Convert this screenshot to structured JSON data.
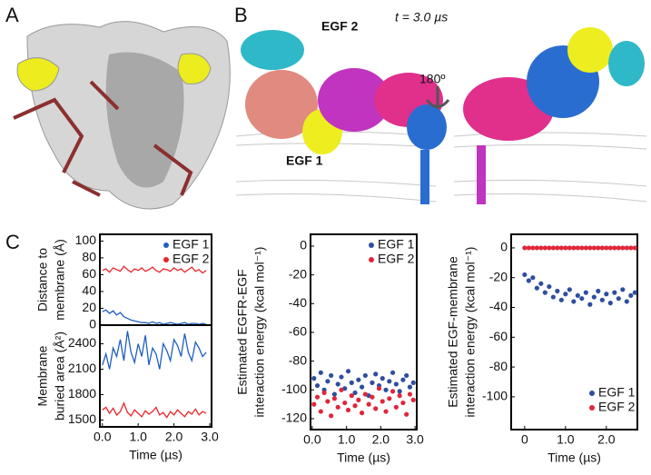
{
  "labels": {
    "a": "A",
    "b": "B",
    "c": "C",
    "egf2": "EGF 2",
    "time": "t = 3.0 µs",
    "rot": "180º",
    "egf1": "EGF 1"
  },
  "chart_data": [
    {
      "type": "line",
      "ylabel": [
        "Distance to",
        "membrane (Å)"
      ],
      "legend": "upper right",
      "grid": false,
      "x": [
        0,
        0.1,
        0.2,
        0.3,
        0.4,
        0.5,
        0.6,
        0.7,
        0.8,
        0.9,
        1.0,
        1.1,
        1.2,
        1.3,
        1.4,
        1.5,
        1.6,
        1.7,
        1.8,
        1.9,
        2.0,
        2.1,
        2.2,
        2.3,
        2.4,
        2.5,
        2.6,
        2.7,
        2.8,
        2.9
      ],
      "xlim": [
        -0.07,
        3.05
      ],
      "ylim": [
        0,
        108
      ],
      "yticks": [
        0,
        20,
        40,
        60,
        80,
        100
      ],
      "series": [
        {
          "name": "EGF 1",
          "color": "#1f5fbf",
          "values": [
            16,
            18,
            14,
            17,
            12,
            15,
            10,
            8,
            6,
            5,
            4,
            3,
            3,
            2,
            4,
            2,
            3,
            1,
            2,
            3,
            2,
            1,
            2,
            3,
            1,
            2,
            2,
            1,
            2,
            1
          ]
        },
        {
          "name": "EGF 2",
          "color": "#e8262a",
          "values": [
            65,
            67,
            63,
            68,
            66,
            64,
            70,
            66,
            63,
            67,
            65,
            68,
            64,
            66,
            69,
            65,
            63,
            67,
            66,
            64,
            68,
            65,
            67,
            63,
            66,
            69,
            64,
            66,
            62,
            65
          ]
        }
      ]
    },
    {
      "type": "line",
      "ylabel": [
        "Membrane",
        "buried area (Å²)"
      ],
      "xlabel": "Time (µs)",
      "grid": false,
      "x": [
        0,
        0.1,
        0.2,
        0.3,
        0.4,
        0.5,
        0.6,
        0.7,
        0.8,
        0.9,
        1.0,
        1.1,
        1.2,
        1.3,
        1.4,
        1.5,
        1.6,
        1.7,
        1.8,
        1.9,
        2.0,
        2.1,
        2.2,
        2.3,
        2.4,
        2.5,
        2.6,
        2.7,
        2.8,
        2.9
      ],
      "xlim": [
        -0.07,
        3.05
      ],
      "xticks": [
        {
          "value": 0,
          "label": "0.0"
        },
        {
          "value": 1,
          "label": "1.0"
        },
        {
          "value": 2,
          "label": "2.0"
        },
        {
          "value": 3,
          "label": "3.0"
        }
      ],
      "ylim": [
        1420,
        2620
      ],
      "yticks": [
        1500,
        1800,
        2100,
        2400
      ],
      "series": [
        {
          "name": "EGF 1",
          "color": "#1f5fbf",
          "values": [
            2150,
            2280,
            2100,
            2350,
            2250,
            2450,
            2200,
            2550,
            2300,
            2180,
            2400,
            2250,
            2500,
            2150,
            2350,
            2280,
            2100,
            2400,
            2320,
            2200,
            2450,
            2380,
            2250,
            2520,
            2300,
            2200,
            2420,
            2350,
            2250,
            2300
          ]
        },
        {
          "name": "EGF 2",
          "color": "#e8262a",
          "values": [
            1620,
            1650,
            1580,
            1640,
            1560,
            1600,
            1700,
            1590,
            1550,
            1620,
            1580,
            1540,
            1610,
            1570,
            1600,
            1650,
            1560,
            1590,
            1530,
            1600,
            1560,
            1620,
            1580,
            1540,
            1600,
            1570,
            1630,
            1560,
            1600,
            1580
          ]
        }
      ]
    },
    {
      "type": "scatter",
      "ylabel": [
        "Estimated EGFR-EGF",
        "interaction energy (kcal mol⁻¹)"
      ],
      "xlabel": "Time (µs)",
      "legend": "upper right",
      "grid": false,
      "xlim": [
        -0.05,
        3.05
      ],
      "xticks": [
        {
          "value": 0,
          "label": "0.0"
        },
        {
          "value": 1,
          "label": "1.0"
        },
        {
          "value": 2,
          "label": "2.0"
        },
        {
          "value": 3,
          "label": "3.0"
        }
      ],
      "ylim": [
        -127.6,
        8.2
      ],
      "yticks": [
        0,
        -20,
        -40,
        -60,
        -80,
        -100,
        -120
      ],
      "series": [
        {
          "name": "EGF 1",
          "color": "#2e4f9e",
          "x": [
            0.05,
            0.15,
            0.25,
            0.35,
            0.45,
            0.55,
            0.65,
            0.75,
            0.85,
            0.95,
            1.05,
            1.15,
            1.25,
            1.35,
            1.45,
            1.55,
            1.65,
            1.75,
            1.85,
            1.95,
            2.05,
            2.15,
            2.25,
            2.35,
            2.45,
            2.55,
            2.65,
            2.75,
            2.85,
            2.95
          ],
          "values": [
            -92,
            -97,
            -88,
            -100,
            -94,
            -90,
            -103,
            -96,
            -91,
            -99,
            -87,
            -95,
            -102,
            -93,
            -98,
            -90,
            -104,
            -95,
            -89,
            -97,
            -92,
            -100,
            -94,
            -88,
            -96,
            -101,
            -93,
            -90,
            -98,
            -95
          ]
        },
        {
          "name": "EGF 2",
          "color": "#e0263a",
          "x": [
            0.05,
            0.15,
            0.25,
            0.35,
            0.45,
            0.55,
            0.65,
            0.75,
            0.85,
            0.95,
            1.05,
            1.15,
            1.25,
            1.35,
            1.45,
            1.55,
            1.65,
            1.75,
            1.85,
            1.95,
            2.05,
            2.15,
            2.25,
            2.35,
            2.45,
            2.55,
            2.65,
            2.75,
            2.85,
            2.95
          ],
          "values": [
            -110,
            -105,
            -115,
            -102,
            -108,
            -118,
            -106,
            -112,
            -100,
            -109,
            -114,
            -104,
            -111,
            -107,
            -116,
            -103,
            -110,
            -105,
            -113,
            -99,
            -108,
            -115,
            -106,
            -101,
            -112,
            -104,
            -109,
            -117,
            -103,
            -107
          ]
        }
      ]
    },
    {
      "type": "scatter",
      "ylabel": [
        "Estimated EGF-membrane",
        "interaction energy (kcal mol⁻¹)"
      ],
      "xlabel": "Time (µs)",
      "legend": "lower right",
      "grid": false,
      "xlim": [
        -0.33,
        2.76
      ],
      "xticks": [
        0,
        {
          "value": 1,
          "label": "1.0"
        },
        {
          "value": 2,
          "label": "2.0"
        }
      ],
      "ylim": [
        -122,
        9.1
      ],
      "yticks": [
        0,
        -20,
        -40,
        -60,
        -80,
        -100
      ],
      "series": [
        {
          "name": "EGF 1",
          "color": "#2e4f9e",
          "x": [
            0,
            0.1,
            0.2,
            0.3,
            0.4,
            0.5,
            0.6,
            0.7,
            0.8,
            0.9,
            1.0,
            1.1,
            1.2,
            1.3,
            1.4,
            1.5,
            1.6,
            1.7,
            1.8,
            1.9,
            2.0,
            2.1,
            2.2,
            2.3,
            2.4,
            2.5,
            2.6,
            2.7
          ],
          "values": [
            -18,
            -22,
            -20,
            -27,
            -24,
            -30,
            -26,
            -33,
            -29,
            -35,
            -31,
            -28,
            -36,
            -32,
            -34,
            -30,
            -38,
            -33,
            -29,
            -35,
            -31,
            -37,
            -30,
            -34,
            -28,
            -36,
            -32,
            -30
          ]
        },
        {
          "name": "EGF 2",
          "color": "#e0263a",
          "x": [
            0,
            0.1,
            0.2,
            0.3,
            0.4,
            0.5,
            0.6,
            0.7,
            0.8,
            0.9,
            1.0,
            1.1,
            1.2,
            1.3,
            1.4,
            1.5,
            1.6,
            1.7,
            1.8,
            1.9,
            2.0,
            2.1,
            2.2,
            2.3,
            2.4,
            2.5,
            2.6,
            2.7
          ],
          "values": [
            0,
            0,
            0,
            0,
            0,
            0,
            0,
            0,
            0,
            0,
            0,
            0,
            0,
            0,
            0,
            0,
            0,
            0,
            0,
            0,
            0,
            0,
            0,
            0,
            0,
            0,
            0,
            0
          ]
        }
      ]
    }
  ]
}
